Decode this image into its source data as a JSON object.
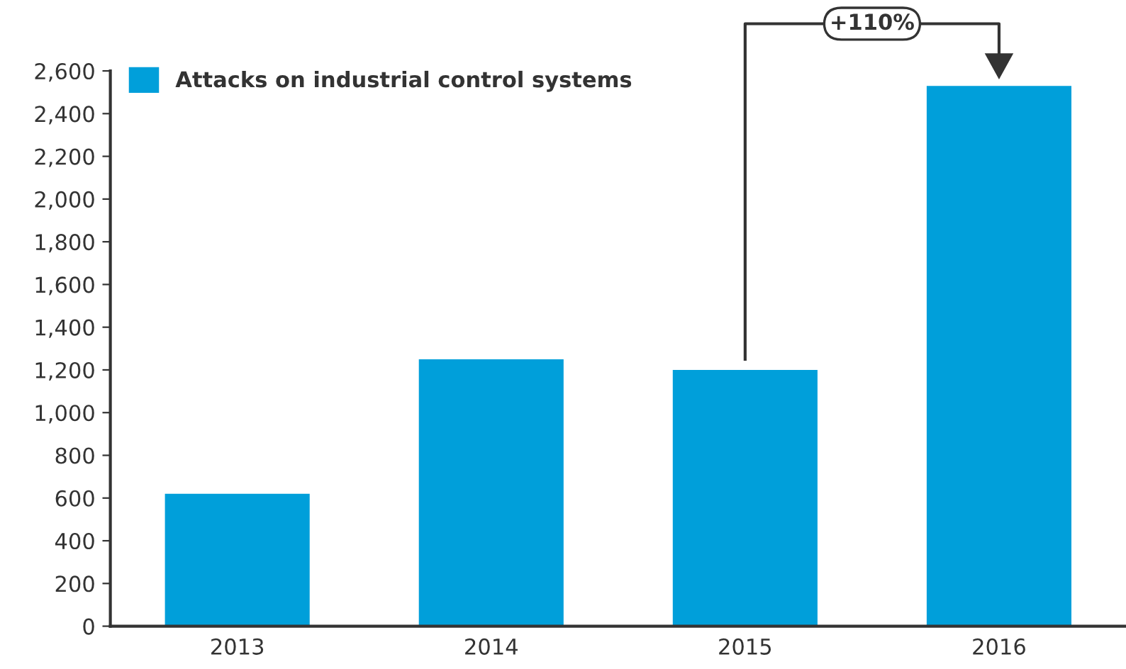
{
  "chart_data": {
    "type": "bar",
    "categories": [
      "2013",
      "2014",
      "2015",
      "2016"
    ],
    "series": [
      {
        "name": "Attacks on industrial control systems",
        "color": "#009fda",
        "values": [
          620,
          1250,
          1200,
          2530
        ]
      }
    ],
    "ylim": [
      0,
      2600
    ],
    "yticks": [
      0,
      {
        "value": 200,
        "label": "200"
      },
      {
        "value": 400,
        "label": "400"
      },
      {
        "value": 600,
        "label": "600"
      },
      {
        "value": 800,
        "label": "800"
      },
      {
        "value": 1000,
        "label": "1,000"
      },
      {
        "value": 1200,
        "label": "1,200"
      },
      {
        "value": 1400,
        "label": "1,400"
      },
      {
        "value": 1600,
        "label": "1,600"
      },
      {
        "value": 1800,
        "label": "1,800"
      },
      {
        "value": 2000,
        "label": "2,000"
      },
      {
        "value": 2200,
        "label": "2,200"
      },
      {
        "value": 2400,
        "label": "2,400"
      },
      {
        "value": 2600,
        "label": "2,600"
      }
    ],
    "annotations": [
      "+110%"
    ],
    "grid": false,
    "legend": "top left"
  }
}
